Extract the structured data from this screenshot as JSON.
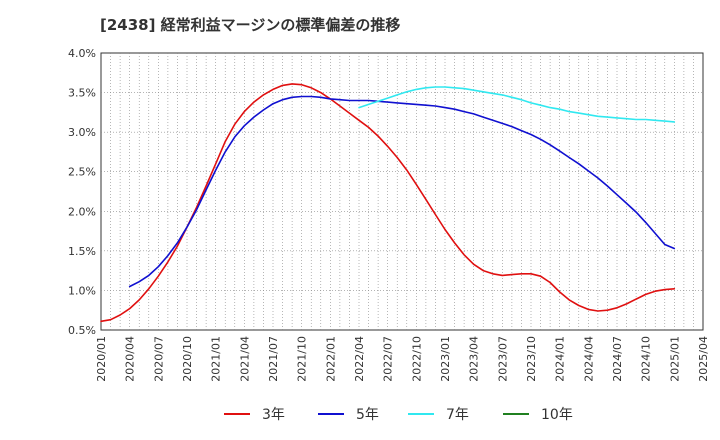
{
  "chart_data": {
    "type": "line",
    "title": "[2438]  経常利益マージンの標準偏差の推移",
    "xlabel": "",
    "ylabel": "",
    "ylim": [
      0.5,
      4.0
    ],
    "yticks": [
      "0.5%",
      "1.0%",
      "1.5%",
      "2.0%",
      "2.5%",
      "3.0%",
      "3.5%",
      "4.0%"
    ],
    "x_start": "2020/01",
    "x_end": "2025/04",
    "xticks": [
      "2020/01",
      "2020/04",
      "2020/07",
      "2020/10",
      "2021/01",
      "2021/04",
      "2021/07",
      "2021/10",
      "2022/01",
      "2022/04",
      "2022/07",
      "2022/10",
      "2023/01",
      "2023/04",
      "2023/07",
      "2023/10",
      "2024/01",
      "2024/04",
      "2024/07",
      "2024/10",
      "2025/01",
      "2025/04"
    ],
    "grid": true,
    "legend_position": "bottom",
    "series": [
      {
        "name": "3年",
        "color": "#e01010",
        "points": [
          [
            "2020/01",
            0.61
          ],
          [
            "2020/02",
            0.63
          ],
          [
            "2020/03",
            0.69
          ],
          [
            "2020/04",
            0.77
          ],
          [
            "2020/05",
            0.88
          ],
          [
            "2020/06",
            1.02
          ],
          [
            "2020/07",
            1.18
          ],
          [
            "2020/08",
            1.36
          ],
          [
            "2020/09",
            1.56
          ],
          [
            "2020/10",
            1.8
          ],
          [
            "2020/11",
            2.05
          ],
          [
            "2020/12",
            2.32
          ],
          [
            "2021/01",
            2.6
          ],
          [
            "2021/02",
            2.88
          ],
          [
            "2021/03",
            3.1
          ],
          [
            "2021/04",
            3.26
          ],
          [
            "2021/05",
            3.38
          ],
          [
            "2021/06",
            3.47
          ],
          [
            "2021/07",
            3.54
          ],
          [
            "2021/08",
            3.59
          ],
          [
            "2021/09",
            3.61
          ],
          [
            "2021/10",
            3.6
          ],
          [
            "2021/11",
            3.56
          ],
          [
            "2021/12",
            3.5
          ],
          [
            "2022/01",
            3.42
          ],
          [
            "2022/02",
            3.33
          ],
          [
            "2022/03",
            3.24
          ],
          [
            "2022/04",
            3.15
          ],
          [
            "2022/05",
            3.06
          ],
          [
            "2022/06",
            2.95
          ],
          [
            "2022/07",
            2.82
          ],
          [
            "2022/08",
            2.68
          ],
          [
            "2022/09",
            2.52
          ],
          [
            "2022/10",
            2.34
          ],
          [
            "2022/11",
            2.15
          ],
          [
            "2022/12",
            1.96
          ],
          [
            "2023/01",
            1.77
          ],
          [
            "2023/02",
            1.6
          ],
          [
            "2023/03",
            1.45
          ],
          [
            "2023/04",
            1.33
          ],
          [
            "2023/05",
            1.25
          ],
          [
            "2023/06",
            1.21
          ],
          [
            "2023/07",
            1.19
          ],
          [
            "2023/08",
            1.2
          ],
          [
            "2023/09",
            1.21
          ],
          [
            "2023/10",
            1.21
          ],
          [
            "2023/11",
            1.18
          ],
          [
            "2023/12",
            1.1
          ],
          [
            "2024/01",
            0.98
          ],
          [
            "2024/02",
            0.88
          ],
          [
            "2024/03",
            0.81
          ],
          [
            "2024/04",
            0.76
          ],
          [
            "2024/05",
            0.74
          ],
          [
            "2024/06",
            0.75
          ],
          [
            "2024/07",
            0.78
          ],
          [
            "2024/08",
            0.83
          ],
          [
            "2024/09",
            0.89
          ],
          [
            "2024/10",
            0.95
          ],
          [
            "2024/11",
            0.99
          ],
          [
            "2024/12",
            1.01
          ],
          [
            "2025/01",
            1.02
          ]
        ]
      },
      {
        "name": "5年",
        "color": "#1010d0",
        "points": [
          [
            "2020/04",
            1.05
          ],
          [
            "2020/05",
            1.11
          ],
          [
            "2020/06",
            1.19
          ],
          [
            "2020/07",
            1.3
          ],
          [
            "2020/08",
            1.44
          ],
          [
            "2020/09",
            1.6
          ],
          [
            "2020/10",
            1.8
          ],
          [
            "2020/11",
            2.02
          ],
          [
            "2020/12",
            2.27
          ],
          [
            "2021/01",
            2.52
          ],
          [
            "2021/02",
            2.75
          ],
          [
            "2021/03",
            2.94
          ],
          [
            "2021/04",
            3.08
          ],
          [
            "2021/05",
            3.19
          ],
          [
            "2021/06",
            3.28
          ],
          [
            "2021/07",
            3.36
          ],
          [
            "2021/08",
            3.41
          ],
          [
            "2021/09",
            3.44
          ],
          [
            "2021/10",
            3.45
          ],
          [
            "2021/11",
            3.45
          ],
          [
            "2021/12",
            3.44
          ],
          [
            "2022/01",
            3.42
          ],
          [
            "2022/02",
            3.41
          ],
          [
            "2022/03",
            3.4
          ],
          [
            "2022/04",
            3.4
          ],
          [
            "2022/05",
            3.4
          ],
          [
            "2022/06",
            3.39
          ],
          [
            "2022/07",
            3.38
          ],
          [
            "2022/08",
            3.37
          ],
          [
            "2022/09",
            3.36
          ],
          [
            "2022/10",
            3.35
          ],
          [
            "2022/11",
            3.34
          ],
          [
            "2022/12",
            3.33
          ],
          [
            "2023/01",
            3.31
          ],
          [
            "2023/02",
            3.29
          ],
          [
            "2023/03",
            3.26
          ],
          [
            "2023/04",
            3.23
          ],
          [
            "2023/05",
            3.19
          ],
          [
            "2023/06",
            3.15
          ],
          [
            "2023/07",
            3.11
          ],
          [
            "2023/08",
            3.07
          ],
          [
            "2023/09",
            3.02
          ],
          [
            "2023/10",
            2.97
          ],
          [
            "2023/11",
            2.91
          ],
          [
            "2023/12",
            2.84
          ],
          [
            "2024/01",
            2.76
          ],
          [
            "2024/02",
            2.68
          ],
          [
            "2024/03",
            2.6
          ],
          [
            "2024/04",
            2.51
          ],
          [
            "2024/05",
            2.42
          ],
          [
            "2024/06",
            2.32
          ],
          [
            "2024/07",
            2.21
          ],
          [
            "2024/08",
            2.1
          ],
          [
            "2024/09",
            1.99
          ],
          [
            "2024/10",
            1.86
          ],
          [
            "2024/11",
            1.72
          ],
          [
            "2024/12",
            1.58
          ],
          [
            "2025/01",
            1.53
          ]
        ]
      },
      {
        "name": "7年",
        "color": "#30e8f0",
        "points": [
          [
            "2022/04",
            3.31
          ],
          [
            "2022/05",
            3.35
          ],
          [
            "2022/06",
            3.39
          ],
          [
            "2022/07",
            3.43
          ],
          [
            "2022/08",
            3.47
          ],
          [
            "2022/09",
            3.51
          ],
          [
            "2022/10",
            3.54
          ],
          [
            "2022/11",
            3.56
          ],
          [
            "2022/12",
            3.57
          ],
          [
            "2023/01",
            3.57
          ],
          [
            "2023/02",
            3.56
          ],
          [
            "2023/03",
            3.55
          ],
          [
            "2023/04",
            3.53
          ],
          [
            "2023/05",
            3.51
          ],
          [
            "2023/06",
            3.49
          ],
          [
            "2023/07",
            3.47
          ],
          [
            "2023/08",
            3.44
          ],
          [
            "2023/09",
            3.41
          ],
          [
            "2023/10",
            3.37
          ],
          [
            "2023/11",
            3.34
          ],
          [
            "2023/12",
            3.31
          ],
          [
            "2024/01",
            3.29
          ],
          [
            "2024/02",
            3.26
          ],
          [
            "2024/03",
            3.24
          ],
          [
            "2024/04",
            3.22
          ],
          [
            "2024/05",
            3.2
          ],
          [
            "2024/06",
            3.19
          ],
          [
            "2024/07",
            3.18
          ],
          [
            "2024/08",
            3.17
          ],
          [
            "2024/09",
            3.16
          ],
          [
            "2024/10",
            3.16
          ],
          [
            "2024/11",
            3.15
          ],
          [
            "2024/12",
            3.14
          ],
          [
            "2025/01",
            3.13
          ]
        ]
      },
      {
        "name": "10年",
        "color": "#208020",
        "points": []
      }
    ]
  }
}
